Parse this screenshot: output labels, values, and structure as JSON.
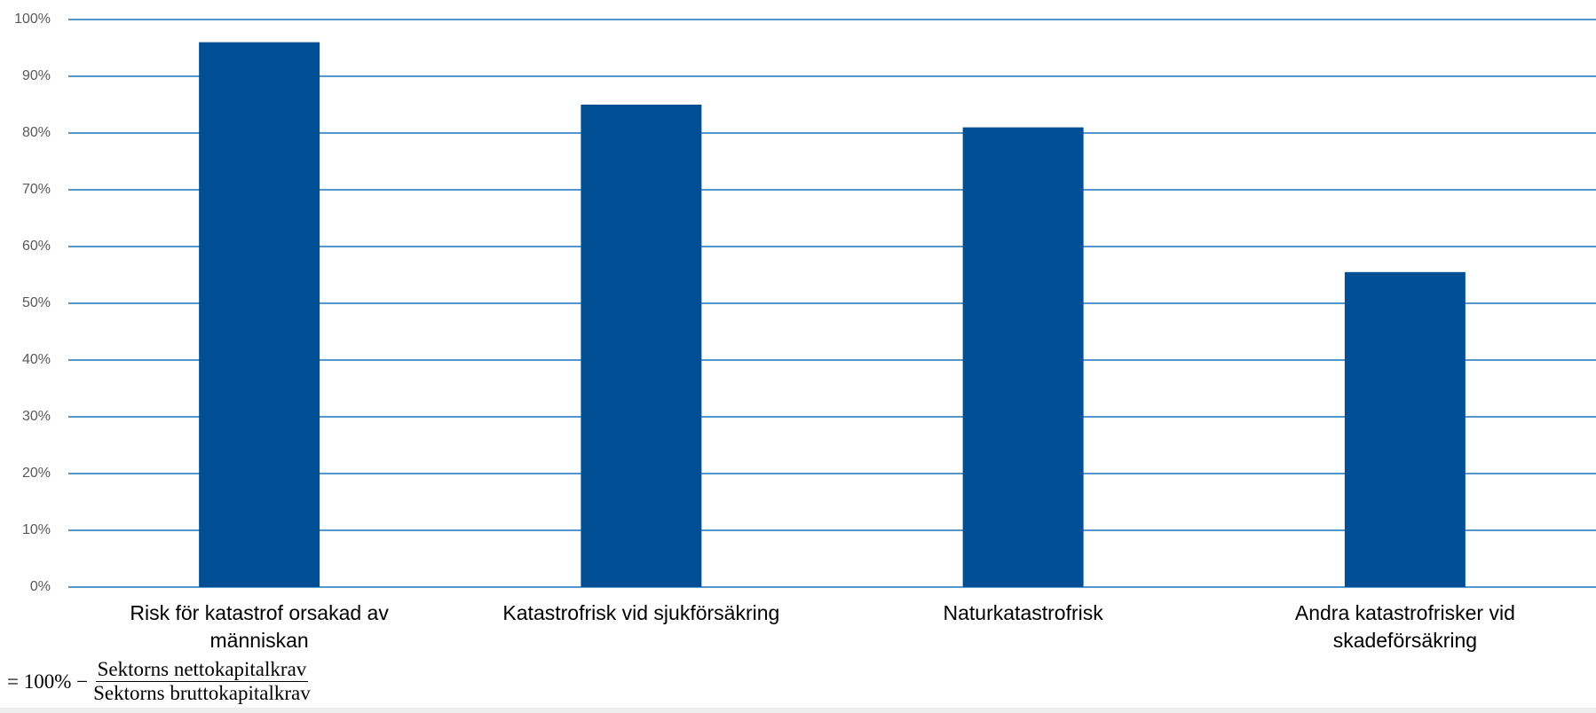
{
  "chart_data": {
    "type": "bar",
    "categories": [
      "Risk för katastrof orsakad av människan",
      "Katastrofrisk vid sjukförsäkring",
      "Naturkatastrofrisk",
      "Andra katastrofrisker vid skadeförsäkring"
    ],
    "values": [
      96,
      85,
      81,
      55.5
    ],
    "color": "#004f95",
    "ylim": [
      0,
      100
    ],
    "yticks": [
      {
        "value": 0,
        "label": "0%"
      },
      {
        "value": 10,
        "label": "10%"
      },
      {
        "value": 20,
        "label": "20%"
      },
      {
        "value": 30,
        "label": "30%"
      },
      {
        "value": 40,
        "label": "40%"
      },
      {
        "value": 50,
        "label": "50%"
      },
      {
        "value": 60,
        "label": "60%"
      },
      {
        "value": 70,
        "label": "70%"
      },
      {
        "value": 80,
        "label": "80%"
      },
      {
        "value": 90,
        "label": "90%"
      },
      {
        "value": 100,
        "label": "100%"
      }
    ],
    "grid": true,
    "annotation": {
      "prefix": "= 100% −",
      "numerator": "Sektorns nettokapitalkrav",
      "denominator": "Sektorns bruttokapitalkrav"
    }
  }
}
